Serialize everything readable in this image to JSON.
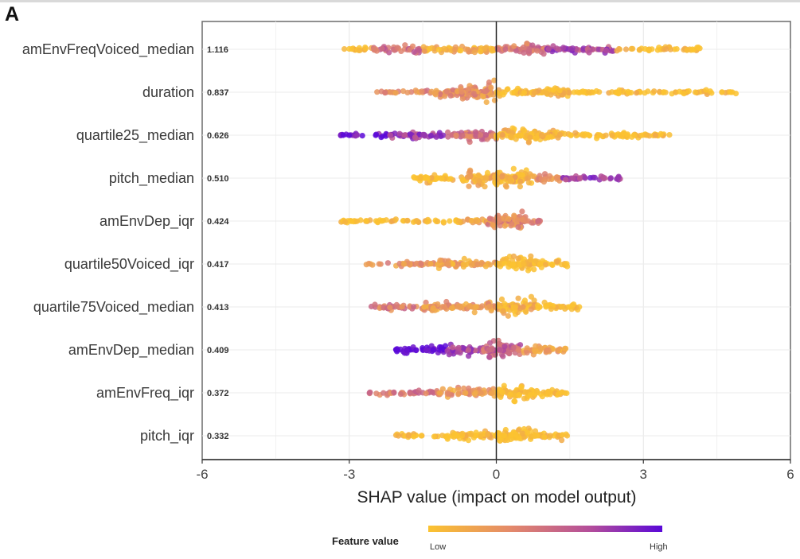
{
  "panel_label": "A",
  "chart_data": {
    "type": "scatter",
    "subtype": "shap-beeswarm",
    "title": "",
    "xlabel": "SHAP value (impact on model output)",
    "xlim": [
      -6,
      6
    ],
    "xticks": [
      -6,
      -3,
      0,
      3,
      6
    ],
    "grid": true,
    "legend": {
      "title": "Feature value",
      "low": "Low",
      "high": "High",
      "placement": "bottom",
      "colors": [
        "#fbc330",
        "#e48a6a",
        "#b24c9c",
        "#5a08d8"
      ]
    },
    "features": [
      {
        "name": "amEnvFreqVoiced_median",
        "mean_abs_shap": "1.116",
        "segments": [
          [
            -3.1,
            -2.5,
            0.0,
            0.6
          ],
          [
            -2.5,
            -1.5,
            0.5,
            0.8
          ],
          [
            -1.5,
            0,
            0.15,
            1.0
          ],
          [
            0,
            1.0,
            0.45,
            1.3
          ],
          [
            1.0,
            2.45,
            0.7,
            0.9
          ],
          [
            2.45,
            4.15,
            0.0,
            0.55
          ]
        ]
      },
      {
        "name": "duration",
        "mean_abs_shap": "0.837",
        "segments": [
          [
            -2.45,
            -1.3,
            0.35,
            0.5
          ],
          [
            -1.3,
            -0.8,
            0.3,
            1.2
          ],
          [
            -0.8,
            0,
            0.3,
            2.2
          ],
          [
            0,
            1.5,
            0.05,
            1.2
          ],
          [
            1.5,
            4.95,
            0.0,
            0.5
          ]
        ]
      },
      {
        "name": "quartile25_median",
        "mean_abs_shap": "0.626",
        "segments": [
          [
            -3.2,
            -2.2,
            0.95,
            0.5
          ],
          [
            -2.2,
            -1.0,
            0.75,
            0.9
          ],
          [
            -1.0,
            0,
            0.45,
            1.4
          ],
          [
            0,
            1.2,
            0.05,
            1.8
          ],
          [
            1.2,
            3.6,
            0.0,
            0.7
          ]
        ]
      },
      {
        "name": "pitch_median",
        "mean_abs_shap": "0.510",
        "segments": [
          [
            -1.7,
            -0.6,
            0.0,
            0.9
          ],
          [
            -0.6,
            0.8,
            0.1,
            2.0
          ],
          [
            0.8,
            1.3,
            0.3,
            1.0
          ],
          [
            1.3,
            2.55,
            0.75,
            0.7
          ]
        ]
      },
      {
        "name": "amEnvDep_iqr",
        "mean_abs_shap": "0.424",
        "segments": [
          [
            -3.2,
            -1.0,
            0.0,
            0.5
          ],
          [
            -1.0,
            -0.2,
            0.1,
            0.7
          ],
          [
            -0.2,
            0.6,
            0.35,
            2.4
          ],
          [
            0.6,
            0.9,
            0.4,
            0.8
          ]
        ]
      },
      {
        "name": "quartile50Voiced_iqr",
        "mean_abs_shap": "0.417",
        "segments": [
          [
            -2.7,
            -1.2,
            0.3,
            0.5
          ],
          [
            -1.2,
            0,
            0.2,
            1.1
          ],
          [
            0,
            0.8,
            0.0,
            2.0
          ],
          [
            0.8,
            1.45,
            0.0,
            1.0
          ]
        ]
      },
      {
        "name": "quartile75Voiced_median",
        "mean_abs_shap": "0.413",
        "segments": [
          [
            -2.55,
            -1.5,
            0.4,
            0.7
          ],
          [
            -1.5,
            0,
            0.25,
            1.2
          ],
          [
            0,
            0.8,
            0.15,
            2.0
          ],
          [
            0.8,
            1.7,
            0.0,
            0.9
          ]
        ]
      },
      {
        "name": "amEnvDep_median",
        "mean_abs_shap": "0.409",
        "segments": [
          [
            -2.05,
            -1.0,
            1.0,
            1.0
          ],
          [
            -1.0,
            -0.3,
            0.7,
            1.2
          ],
          [
            -0.3,
            0.5,
            0.55,
            2.0
          ],
          [
            0.5,
            1.45,
            0.2,
            1.1
          ]
        ]
      },
      {
        "name": "amEnvFreq_iqr",
        "mean_abs_shap": "0.372",
        "segments": [
          [
            -2.6,
            -1.2,
            0.45,
            0.6
          ],
          [
            -1.2,
            0,
            0.25,
            1.1
          ],
          [
            0,
            0.8,
            0.0,
            2.0
          ],
          [
            0.8,
            1.45,
            0.0,
            0.9
          ]
        ]
      },
      {
        "name": "pitch_iqr",
        "mean_abs_shap": "0.332",
        "segments": [
          [
            -2.05,
            -1.0,
            0.0,
            0.5
          ],
          [
            -1.0,
            0,
            0.05,
            1.2
          ],
          [
            0,
            0.7,
            0.0,
            2.0
          ],
          [
            0.7,
            1.45,
            0.05,
            1.0
          ]
        ]
      }
    ]
  }
}
